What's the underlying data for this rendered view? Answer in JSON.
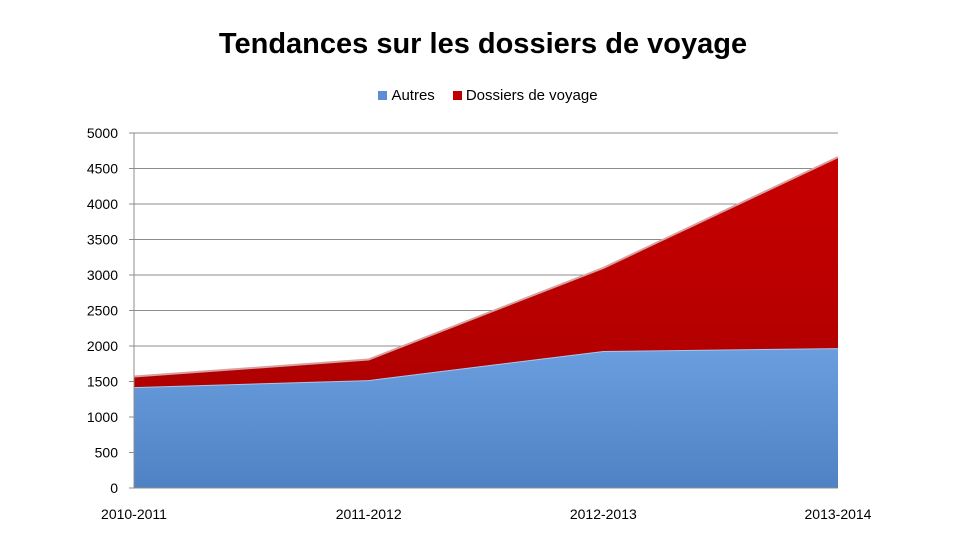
{
  "chart_data": {
    "type": "area",
    "stacked": true,
    "title": "Tendances sur les dossiers de voyage",
    "categories": [
      "2010-2011",
      "2011-2012",
      "2012-2013",
      "2013-2014"
    ],
    "series": [
      {
        "name": "Autres",
        "values": [
          1420,
          1520,
          1930,
          1970
        ],
        "color": "#5a8fd2"
      },
      {
        "name": "Dossiers de voyage",
        "values": [
          150,
          290,
          1170,
          2690
        ],
        "color": "#c00000"
      }
    ],
    "ylim": [
      0,
      5000
    ],
    "yticks": [
      0,
      500,
      1000,
      1500,
      2000,
      2500,
      3000,
      3500,
      4000,
      4500,
      5000
    ],
    "grid": true,
    "legend_position": "top"
  }
}
